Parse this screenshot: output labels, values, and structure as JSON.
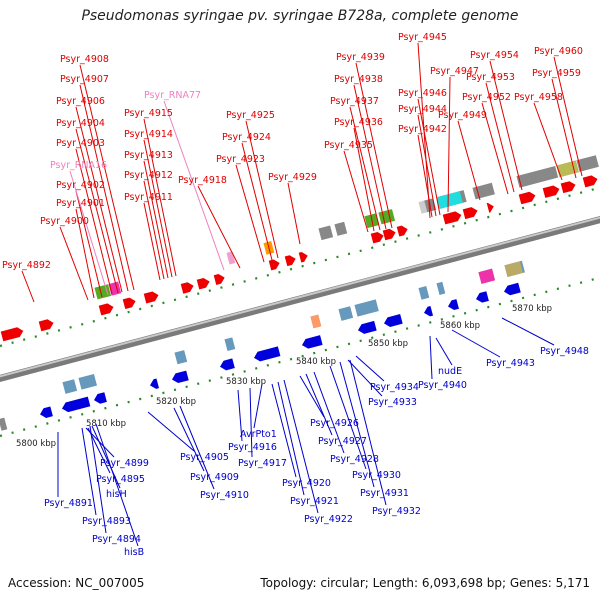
{
  "title": "Pseudomonas syringae pv. syringae B728a, complete genome",
  "accession": "Accession: NC_007005",
  "summary": "Topology: circular; Length: 6,093,698 bp; Genes: 5,171",
  "colors": {
    "forward_label": "#e00000",
    "reverse_label": "#0000cc",
    "rna_label": "#f080c0",
    "backbone": "#808080"
  },
  "scale_ticks": [
    "5800 kbp",
    "5810 kbp",
    "5820 kbp",
    "5830 kbp",
    "5840 kbp",
    "5850 kbp",
    "5860 kbp",
    "5870 kbp"
  ],
  "forward_labels": [
    "Psyr_4892",
    "Psyr_4900",
    "Psyr_4901",
    "Psyr_4902",
    "Psyr_RNA16",
    "Psyr_4903",
    "Psyr_4904",
    "Psyr_4906",
    "Psyr_4907",
    "Psyr_4908",
    "Psyr_4911",
    "Psyr_4912",
    "Psyr_4913",
    "Psyr_4914",
    "Psyr_4915",
    "Psyr_RNA77",
    "Psyr_4918",
    "Psyr_4923",
    "Psyr_4924",
    "Psyr_4925",
    "Psyr_4929",
    "Psyr_4935",
    "Psyr_4936",
    "Psyr_4937",
    "Psyr_4938",
    "Psyr_4939",
    "Psyr_4945",
    "Psyr_4942",
    "Psyr_4944",
    "Psyr_4946",
    "Psyr_4947",
    "Psyr_4949",
    "Psyr_4952",
    "Psyr_4953",
    "Psyr_4954",
    "Psyr_4958",
    "Psyr_4959",
    "Psyr_4960"
  ],
  "reverse_labels": [
    "Psyr_4891",
    "Psyr_4893",
    "Psyr_4894",
    "hisB",
    "hisH",
    "Psyr_4895",
    "Psyr_4899",
    "Psyr_4905",
    "Psyr_4909",
    "Psyr_4910",
    "Psyr_4916",
    "Psyr_4917",
    "AvrPto1",
    "Psyr_4920",
    "Psyr_4921",
    "Psyr_4922",
    "Psyr_4926",
    "Psyr_4927",
    "Psyr_4928",
    "Psyr_4930",
    "Psyr_4931",
    "Psyr_4932",
    "Psyr_4933",
    "Psyr_4934",
    "nudE",
    "Psyr_4940",
    "Psyr_4943",
    "Psyr_4948"
  ]
}
